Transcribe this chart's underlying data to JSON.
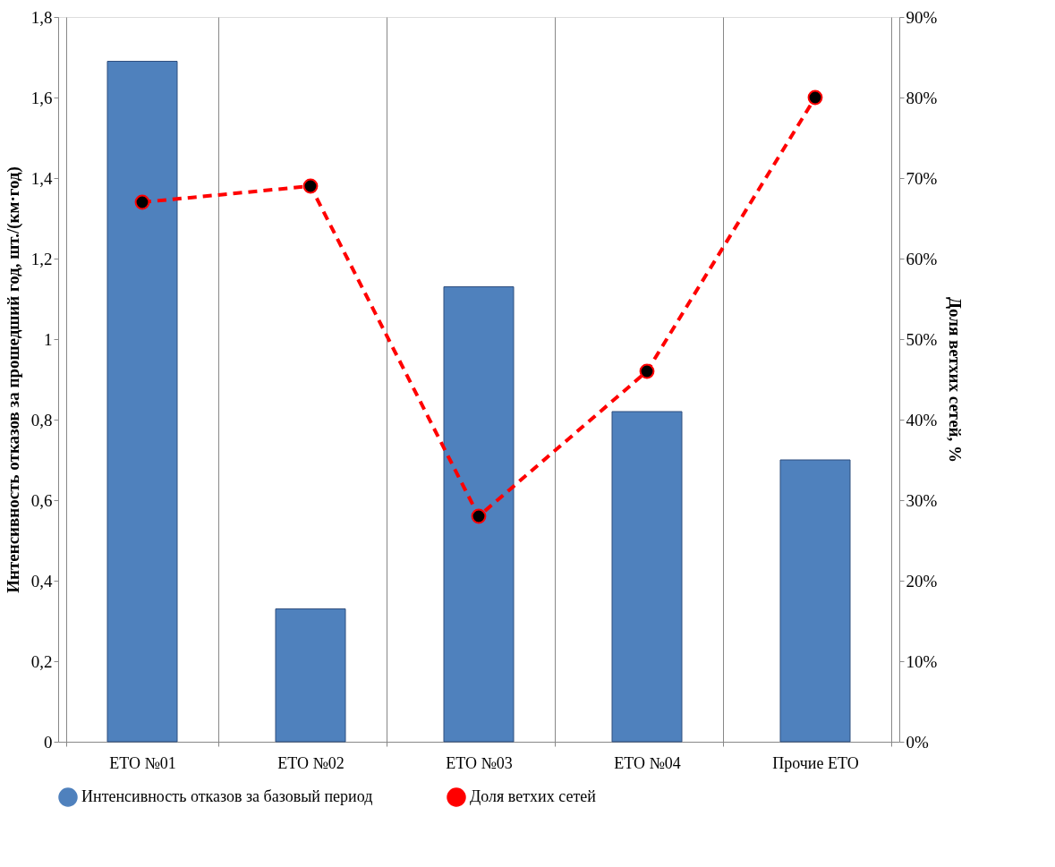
{
  "chart_data": {
    "type": "bar",
    "ylabel": "Интенсивность отказов за прошедший год, шт./(км·год)",
    "y2label": "Доля ветхих сетей, %",
    "categories": [
      "ЕТО №01",
      "ЕТО №02",
      "ЕТО №03",
      "ЕТО №04",
      "Прочие ЕТО"
    ],
    "series": [
      {
        "name": "Интенсивность отказов за базовый период",
        "color": "#4f81bd",
        "values": [
          1.69,
          0.33,
          1.13,
          0.82,
          0.7
        ]
      },
      {
        "name": "Доля ветхих сетей",
        "type": "line",
        "axis": "y2",
        "color": "#ff0000",
        "values": [
          67,
          69,
          28,
          46,
          80
        ]
      }
    ],
    "ylim": [
      0,
      1.8
    ],
    "yticks": [
      0,
      {
        "value": 0.2,
        "label": "0,2"
      },
      {
        "value": 0.4,
        "label": "0,4"
      },
      {
        "value": 0.6,
        "label": "0,6"
      },
      {
        "value": 0.8,
        "label": "0,8"
      },
      1,
      {
        "value": 1.2,
        "label": "1,2"
      },
      {
        "value": 1.4,
        "label": "1,4"
      },
      {
        "value": 1.6,
        "label": "1,6"
      },
      {
        "value": 1.8,
        "label": "1,8"
      }
    ],
    "y2lim": [
      0,
      90
    ],
    "y2ticks": [
      {
        "value": 0,
        "label": "0%"
      },
      {
        "value": 10,
        "label": "10%"
      },
      {
        "value": 20,
        "label": "20%"
      },
      {
        "value": 30,
        "label": "30%"
      },
      {
        "value": 40,
        "label": "40%"
      },
      {
        "value": 50,
        "label": "50%"
      },
      {
        "value": 60,
        "label": "60%"
      },
      {
        "value": 70,
        "label": "70%"
      },
      {
        "value": 80,
        "label": "80%"
      },
      {
        "value": 90,
        "label": "90%"
      }
    ],
    "grid": "x",
    "legend": "bottom",
    "marker": "circle",
    "line_style": "dashed"
  }
}
